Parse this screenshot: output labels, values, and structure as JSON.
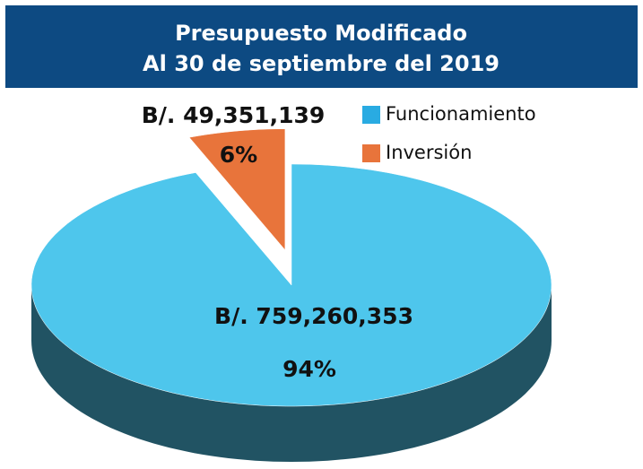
{
  "chart_data": {
    "type": "pie3d",
    "title": "Presupuesto Modificado",
    "subtitle": "Al 30 de septiembre del 2019",
    "categories": [
      "Funcionamiento",
      "Inversión"
    ],
    "values": [
      94,
      6
    ],
    "value_labels": [
      "94%",
      "6%"
    ],
    "amounts": [
      759260353,
      49351139
    ],
    "amount_labels": [
      "B/. 759,260,353",
      "B/. 49,351,139"
    ],
    "colors": [
      "#4ec6ec",
      "#e8743b"
    ],
    "legend_colors": [
      "#29abe2",
      "#e8743b"
    ]
  }
}
